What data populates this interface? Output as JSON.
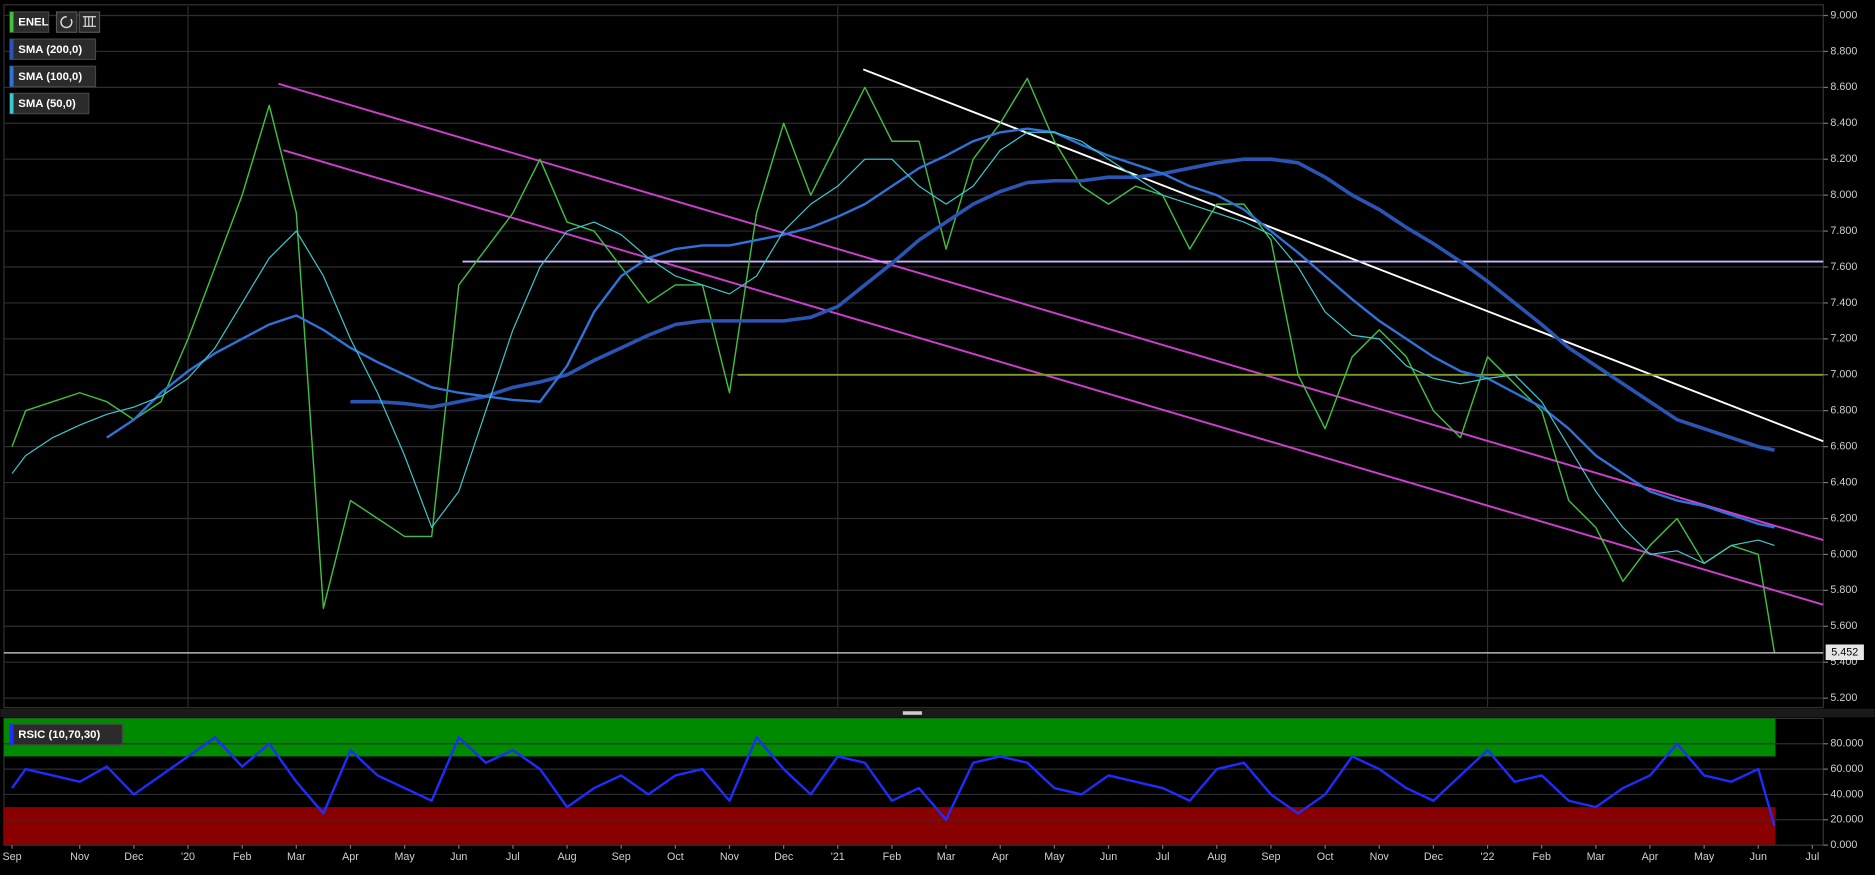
{
  "chart_data": [
    {
      "type": "line",
      "x": [
        0.75,
        1,
        1.5,
        2,
        2.5,
        3,
        3.5,
        4,
        4.5,
        5,
        5.5,
        6,
        6.5,
        7,
        7.5,
        8,
        8.5,
        9,
        9.5,
        10,
        10.5,
        11,
        11.5,
        12,
        12.5,
        13,
        13.5,
        14,
        14.5,
        15,
        15.5,
        16,
        16.5,
        17,
        17.5,
        18,
        18.5,
        19,
        19.5,
        20,
        20.5,
        21,
        21.5,
        22,
        22.5,
        23,
        23.5,
        24,
        24.5,
        25,
        25.5,
        26,
        26.5,
        27,
        27.5,
        28,
        28.5,
        29,
        29.5,
        30,
        30.5,
        31,
        31.5,
        32,
        32.5,
        33,
        33.3
      ],
      "series": [
        {
          "name": "ENEL",
          "color": "#3fbf3f",
          "width": 1.2,
          "values": [
            6.6,
            6.8,
            6.85,
            6.9,
            6.85,
            6.75,
            6.85,
            7.2,
            7.6,
            8.0,
            8.5,
            7.9,
            5.7,
            6.3,
            6.2,
            6.1,
            6.1,
            7.5,
            7.7,
            7.9,
            8.2,
            7.85,
            7.8,
            7.6,
            7.4,
            7.5,
            7.5,
            6.9,
            7.9,
            8.4,
            8.0,
            8.3,
            8.6,
            8.3,
            8.3,
            7.7,
            8.2,
            8.4,
            8.65,
            8.3,
            8.05,
            7.95,
            8.05,
            8.0,
            7.7,
            7.95,
            7.95,
            7.75,
            7.0,
            6.7,
            7.1,
            7.25,
            7.1,
            6.8,
            6.65,
            7.1,
            6.95,
            6.8,
            6.3,
            6.15,
            5.85,
            6.05,
            6.2,
            5.95,
            6.05,
            6.0,
            5.45
          ]
        },
        {
          "name": "SMA (200,0)",
          "color": "#2a55b5",
          "width": 3,
          "values": [
            null,
            null,
            null,
            null,
            null,
            null,
            null,
            null,
            null,
            null,
            null,
            null,
            null,
            6.85,
            6.85,
            6.84,
            6.82,
            6.85,
            6.88,
            6.93,
            6.96,
            7.0,
            7.08,
            7.15,
            7.22,
            7.28,
            7.3,
            7.3,
            7.3,
            7.3,
            7.32,
            7.38,
            7.5,
            7.62,
            7.75,
            7.85,
            7.95,
            8.02,
            8.07,
            8.08,
            8.08,
            8.1,
            8.1,
            8.12,
            8.15,
            8.18,
            8.2,
            8.2,
            8.18,
            8.1,
            8.0,
            7.92,
            7.82,
            7.73,
            7.63,
            7.52,
            7.4,
            7.28,
            7.15,
            7.05,
            6.95,
            6.85,
            6.75,
            6.7,
            6.65,
            6.6,
            6.58
          ]
        },
        {
          "name": "SMA (100,0)",
          "color": "#2f72d8",
          "width": 2,
          "values": [
            null,
            null,
            null,
            null,
            6.65,
            6.75,
            6.9,
            7.02,
            7.12,
            7.2,
            7.28,
            7.33,
            7.25,
            7.15,
            7.07,
            7.0,
            6.93,
            6.9,
            6.88,
            6.86,
            6.85,
            7.05,
            7.35,
            7.55,
            7.65,
            7.7,
            7.72,
            7.72,
            7.75,
            7.78,
            7.82,
            7.88,
            7.95,
            8.05,
            8.15,
            8.22,
            8.3,
            8.35,
            8.37,
            8.35,
            8.28,
            8.22,
            8.17,
            8.12,
            8.05,
            8.0,
            7.92,
            7.8,
            7.68,
            7.55,
            7.42,
            7.3,
            7.2,
            7.1,
            7.02,
            6.98,
            6.9,
            6.82,
            6.7,
            6.55,
            6.45,
            6.35,
            6.3,
            6.27,
            6.22,
            6.17,
            6.15
          ]
        },
        {
          "name": "SMA (50,0)",
          "color": "#3cc8cf",
          "width": 1,
          "values": [
            6.45,
            6.55,
            6.65,
            6.72,
            6.78,
            6.82,
            6.88,
            6.98,
            7.15,
            7.4,
            7.65,
            7.8,
            7.55,
            7.2,
            6.9,
            6.55,
            6.15,
            6.35,
            6.8,
            7.25,
            7.6,
            7.8,
            7.85,
            7.78,
            7.65,
            7.55,
            7.5,
            7.45,
            7.55,
            7.8,
            7.95,
            8.05,
            8.2,
            8.2,
            8.05,
            7.95,
            8.05,
            8.25,
            8.35,
            8.35,
            8.3,
            8.2,
            8.1,
            8.0,
            7.95,
            7.9,
            7.85,
            7.78,
            7.6,
            7.35,
            7.22,
            7.2,
            7.05,
            6.98,
            6.95,
            6.98,
            7.0,
            6.85,
            6.6,
            6.35,
            6.15,
            6.0,
            6.02,
            5.95,
            6.05,
            6.08,
            6.05
          ]
        }
      ],
      "lines": [
        {
          "x": [
            5.67,
            34.2
          ],
          "y": [
            8.62,
            6.08
          ],
          "color": "#d23dd2"
        },
        {
          "x": [
            5.76,
            34.2
          ],
          "y": [
            8.25,
            5.72
          ],
          "color": "#d23dd2"
        },
        {
          "x": [
            16.47,
            34.2
          ],
          "y": [
            8.7,
            6.63
          ],
          "color": "#ffffff"
        },
        {
          "x": [
            9.07,
            34.2
          ],
          "y": [
            7.63,
            7.63
          ],
          "color": "#c8b8ff"
        },
        {
          "x": [
            14.15,
            34.2
          ],
          "y": [
            7.0,
            7.0
          ],
          "color": "#7f9a2a"
        }
      ],
      "last_price": {
        "value": 5.452,
        "label": "5.452"
      },
      "xlim": [
        0.6,
        34.2
      ],
      "xgrid": [
        4,
        16,
        28
      ],
      "ylim": [
        5.147,
        9.053
      ],
      "yticks": [
        {
          "value": 5.2,
          "label": "5.200"
        },
        {
          "value": 5.4,
          "label": "5.400"
        },
        {
          "value": 5.6,
          "label": "5.600"
        },
        {
          "value": 5.8,
          "label": "5.800"
        },
        {
          "value": 6.0,
          "label": "6.000"
        },
        {
          "value": 6.2,
          "label": "6.200"
        },
        {
          "value": 6.4,
          "label": "6.400"
        },
        {
          "value": 6.6,
          "label": "6.600"
        },
        {
          "value": 6.8,
          "label": "6.800"
        },
        {
          "value": 7.0,
          "label": "7.000"
        },
        {
          "value": 7.2,
          "label": "7.200"
        },
        {
          "value": 7.4,
          "label": "7.400"
        },
        {
          "value": 7.6,
          "label": "7.600"
        },
        {
          "value": 7.8,
          "label": "7.800"
        },
        {
          "value": 8.0,
          "label": "8.000"
        },
        {
          "value": 8.2,
          "label": "8.200"
        },
        {
          "value": 8.4,
          "label": "8.400"
        },
        {
          "value": 8.6,
          "label": "8.600"
        },
        {
          "value": 8.8,
          "label": "8.800"
        },
        {
          "value": 9.0,
          "label": "9.000"
        }
      ],
      "grid": true
    },
    {
      "type": "line",
      "x": [
        0.75,
        1,
        1.5,
        2,
        2.5,
        3,
        3.5,
        4,
        4.5,
        5,
        5.5,
        6,
        6.5,
        7,
        7.5,
        8,
        8.5,
        9,
        9.5,
        10,
        10.5,
        11,
        11.5,
        12,
        12.5,
        13,
        13.5,
        14,
        14.5,
        15,
        15.5,
        16,
        16.5,
        17,
        17.5,
        18,
        18.5,
        19,
        19.5,
        20,
        20.5,
        21,
        21.5,
        22,
        22.5,
        23,
        23.5,
        24,
        24.5,
        25,
        25.5,
        26,
        26.5,
        27,
        27.5,
        28,
        28.5,
        29,
        29.5,
        30,
        30.5,
        31,
        31.5,
        32,
        32.5,
        33,
        33.3
      ],
      "series": [
        {
          "name": "RSIC (10,70,30)",
          "color": "#1f2cff",
          "width": 2,
          "values": [
            45,
            60,
            55,
            50,
            62,
            40,
            55,
            70,
            85,
            62,
            80,
            50,
            25,
            75,
            55,
            45,
            35,
            85,
            65,
            75,
            60,
            30,
            45,
            55,
            40,
            55,
            60,
            35,
            85,
            60,
            40,
            70,
            65,
            35,
            45,
            20,
            65,
            70,
            65,
            45,
            40,
            55,
            50,
            45,
            35,
            60,
            65,
            40,
            25,
            40,
            70,
            60,
            45,
            35,
            55,
            75,
            50,
            55,
            35,
            30,
            45,
            55,
            80,
            55,
            50,
            60,
            15
          ]
        }
      ],
      "bands": [
        {
          "range": [
            70,
            100
          ],
          "color": "#008a00"
        },
        {
          "range": [
            0,
            30
          ],
          "color": "#8a0000"
        }
      ],
      "xlim": [
        0.6,
        34.2
      ],
      "ylim": [
        0,
        100
      ],
      "yticks": [
        {
          "value": 0,
          "label": "0.000"
        },
        {
          "value": 20,
          "label": "20.000"
        },
        {
          "value": 40,
          "label": "40.000"
        },
        {
          "value": 60,
          "label": "60.000"
        },
        {
          "value": 80,
          "label": "80.000"
        }
      ],
      "xticks": [
        {
          "value": 0.75,
          "label": "Sep"
        },
        {
          "value": 2,
          "label": "Nov"
        },
        {
          "value": 3,
          "label": "Dec"
        },
        {
          "value": 4,
          "label": "'20"
        },
        {
          "value": 5,
          "label": "Feb"
        },
        {
          "value": 6,
          "label": "Mar"
        },
        {
          "value": 7,
          "label": "Apr"
        },
        {
          "value": 8,
          "label": "May"
        },
        {
          "value": 9,
          "label": "Jun"
        },
        {
          "value": 10,
          "label": "Jul"
        },
        {
          "value": 11,
          "label": "Aug"
        },
        {
          "value": 12,
          "label": "Sep"
        },
        {
          "value": 13,
          "label": "Oct"
        },
        {
          "value": 14,
          "label": "Nov"
        },
        {
          "value": 15,
          "label": "Dec"
        },
        {
          "value": 16,
          "label": "'21"
        },
        {
          "value": 17,
          "label": "Feb"
        },
        {
          "value": 18,
          "label": "Mar"
        },
        {
          "value": 19,
          "label": "Apr"
        },
        {
          "value": 20,
          "label": "May"
        },
        {
          "value": 21,
          "label": "Jun"
        },
        {
          "value": 22,
          "label": "Jul"
        },
        {
          "value": 23,
          "label": "Aug"
        },
        {
          "value": 24,
          "label": "Sep"
        },
        {
          "value": 25,
          "label": "Oct"
        },
        {
          "value": 26,
          "label": "Nov"
        },
        {
          "value": 27,
          "label": "Dec"
        },
        {
          "value": 28,
          "label": "'22"
        },
        {
          "value": 29,
          "label": "Feb"
        },
        {
          "value": 30,
          "label": "Mar"
        },
        {
          "value": 31,
          "label": "Apr"
        },
        {
          "value": 32,
          "label": "May"
        },
        {
          "value": 33,
          "label": "Jun"
        },
        {
          "value": 34,
          "label": "Jul"
        }
      ],
      "grid": true
    }
  ]
}
